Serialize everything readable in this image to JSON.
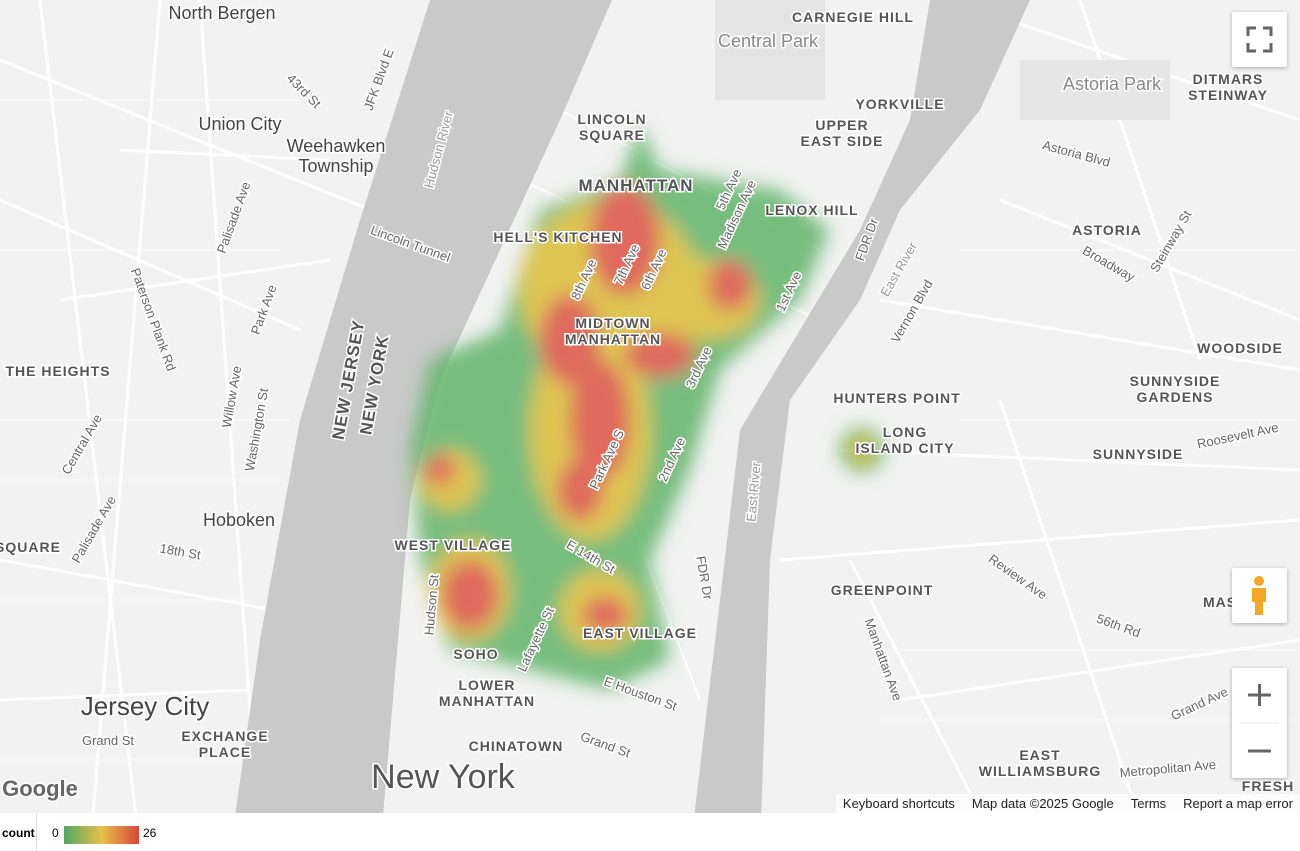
{
  "map": {
    "places": [
      [
        "North Bergen"
      ],
      [
        "Union City"
      ],
      [
        "Weehawken",
        "Township"
      ],
      [
        "Hoboken"
      ],
      [
        "Jersey City"
      ],
      [
        "EXCHANGE",
        "PLACE"
      ],
      [
        "THE HEIGHTS"
      ],
      [
        "SQUARE"
      ],
      [
        "Central Park"
      ],
      [
        "CARNEGIE HILL"
      ],
      [
        "LINCOLN",
        "SQUARE"
      ],
      [
        "MANHATTAN"
      ],
      [
        "HELL'S KITCHEN"
      ],
      [
        "MIDTOWN",
        "MANHATTAN"
      ],
      [
        "LENOX HILL"
      ],
      [
        "UPPER",
        "EAST SIDE"
      ],
      [
        "YORKVILLE"
      ],
      [
        "Astoria Park"
      ],
      [
        "DITMARS",
        "STEINWAY"
      ],
      [
        "ASTORIA"
      ],
      [
        "WOODSIDE"
      ],
      [
        "SUNNYSIDE",
        "GARDENS"
      ],
      [
        "HUNTERS POINT"
      ],
      [
        "LONG",
        "ISLAND CITY"
      ],
      [
        "SUNNYSIDE"
      ],
      [
        "WEST VILLAGE"
      ],
      [
        "EAST VILLAGE"
      ],
      [
        "SOHO"
      ],
      [
        "LOWER",
        "MANHATTAN"
      ],
      [
        "CHINATOWN"
      ],
      [
        "New York"
      ],
      [
        "GREENPOINT"
      ],
      [
        "EAST",
        "WILLIAMSBURG"
      ],
      [
        "FRESH"
      ],
      [
        "MAS"
      ],
      [
        "NEW JERSEY"
      ],
      [
        "NEW YORK"
      ],
      [
        "Lincoln Tunnel"
      ],
      [
        "Hudson River"
      ],
      [
        "East River"
      ],
      [
        "East River"
      ],
      [
        "FDR Dr"
      ],
      [
        "5th Ave"
      ],
      [
        "Madison Ave"
      ],
      [
        "7th Ave"
      ],
      [
        "8th Ave"
      ],
      [
        "6th Ave"
      ],
      [
        "1st Ave"
      ],
      [
        "3rd Ave"
      ],
      [
        "2nd Ave"
      ],
      [
        "Park Ave S"
      ],
      [
        "E 14th St"
      ],
      [
        "Lafayette St"
      ],
      [
        "E Houston St"
      ],
      [
        "Grand St"
      ],
      [
        "Hudson St"
      ],
      [
        "Palisade Ave"
      ],
      [
        "Paterson Plank Rd"
      ],
      [
        "Willow Ave"
      ],
      [
        "Washington St"
      ],
      [
        "Central Ave"
      ],
      [
        "Palisade Ave"
      ],
      [
        "18th St"
      ],
      [
        "Grand St"
      ],
      [
        "Vernon Blvd"
      ],
      [
        "Broadway"
      ],
      [
        "Steinway St"
      ],
      [
        "Astoria Blvd"
      ],
      [
        "Roosevelt Ave"
      ],
      [
        "Review Ave"
      ],
      [
        "56th Rd"
      ],
      [
        "Manhattan Ave"
      ],
      [
        "Grand Ave"
      ],
      [
        "Metropolitan Ave"
      ],
      [
        "FDR Dr"
      ],
      [
        "43rd St"
      ],
      [
        "JFK Blvd E"
      ],
      [
        "Park Ave"
      ]
    ],
    "logo": "Google",
    "attribution": [
      "Keyboard shortcuts",
      "Map data ©2025 Google",
      "Terms",
      "Report a map error"
    ]
  },
  "legend": {
    "title": "count",
    "min": 0,
    "max": 26
  }
}
